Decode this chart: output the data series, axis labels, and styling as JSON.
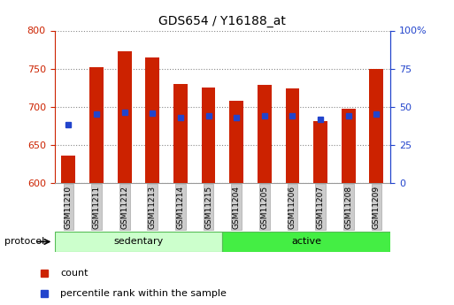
{
  "title": "GDS654 / Y16188_at",
  "samples": [
    "GSM11210",
    "GSM11211",
    "GSM11212",
    "GSM11213",
    "GSM11214",
    "GSM11215",
    "GSM11204",
    "GSM11205",
    "GSM11206",
    "GSM11207",
    "GSM11208",
    "GSM11209"
  ],
  "count_values": [
    636,
    752,
    773,
    765,
    730,
    725,
    708,
    729,
    724,
    681,
    697,
    749
  ],
  "percentile_values": [
    676,
    691,
    693,
    692,
    686,
    688,
    686,
    688,
    688,
    683,
    688,
    691
  ],
  "ymin": 600,
  "ymax": 800,
  "yticks_left": [
    600,
    650,
    700,
    750,
    800
  ],
  "right_tick_positions": [
    600,
    650,
    700,
    750,
    800
  ],
  "right_tick_labels": [
    "0",
    "25",
    "50",
    "75",
    "100%"
  ],
  "bar_color": "#cc2200",
  "dot_color": "#2244cc",
  "group1_label": "sedentary",
  "group2_label": "active",
  "group1_color": "#ccffcc",
  "group2_color": "#44ee44",
  "protocol_label": "protocol",
  "legend_count": "count",
  "legend_percentile": "percentile rank within the sample",
  "bar_width": 0.5,
  "left_label_color": "#cc2200",
  "right_label_color": "#2244cc",
  "grid_color": "#888888",
  "tick_label_bg": "#cccccc",
  "tick_label_edge": "#aaaaaa"
}
